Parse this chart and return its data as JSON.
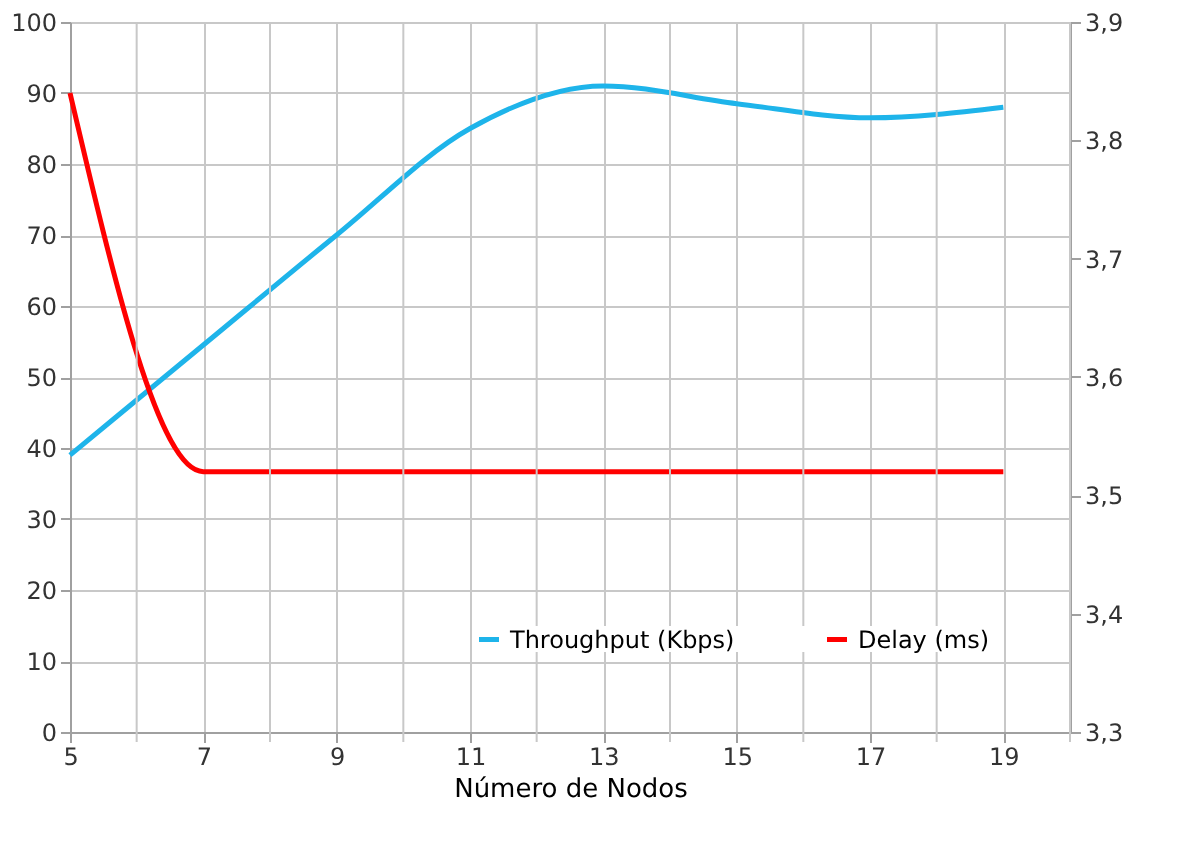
{
  "chart_data": {
    "type": "line",
    "xlabel": "Número de Nodos",
    "x": [
      5,
      7,
      9,
      11,
      13,
      15,
      17,
      19
    ],
    "xlim": [
      5,
      20
    ],
    "xticks": [
      5,
      {
        "value": 6,
        "label": null
      },
      7,
      {
        "value": 8,
        "label": null
      },
      9,
      {
        "value": 10,
        "label": null
      },
      11,
      {
        "value": 12,
        "label": null
      },
      13,
      {
        "value": 14,
        "label": null
      },
      15,
      {
        "value": 16,
        "label": null
      },
      17,
      {
        "value": 18,
        "label": null
      },
      19,
      {
        "value": 20,
        "label": null
      }
    ],
    "ylim": [
      0,
      100
    ],
    "yticks": [
      0,
      10,
      20,
      30,
      40,
      50,
      60,
      70,
      80,
      90,
      100
    ],
    "y2lim": [
      3.3,
      3.9
    ],
    "y2ticks": [
      {
        "value": 3.3,
        "label": "3,3"
      },
      {
        "value": 3.4,
        "label": "3,4"
      },
      {
        "value": 3.5,
        "label": "3,5"
      },
      {
        "value": 3.6,
        "label": "3,6"
      },
      {
        "value": 3.7,
        "label": "3,7"
      },
      {
        "value": 3.8,
        "label": "3,8"
      },
      {
        "value": 3.9,
        "label": "3,9"
      }
    ],
    "series": [
      {
        "name": "Throughput (Kbps)",
        "color": "#1eb4ea",
        "values": [
          39,
          54.5,
          70,
          85,
          91,
          88.5,
          86.5,
          88
        ]
      },
      {
        "name": "Delay (ms)",
        "color": "#ff0000",
        "axis": "y2",
        "values": [
          3.84,
          3.52,
          3.52,
          3.52,
          3.52,
          3.52,
          3.52,
          3.52
        ]
      }
    ],
    "grid": true,
    "legend": "bottom right",
    "line_style": "solid",
    "marker": "none"
  }
}
